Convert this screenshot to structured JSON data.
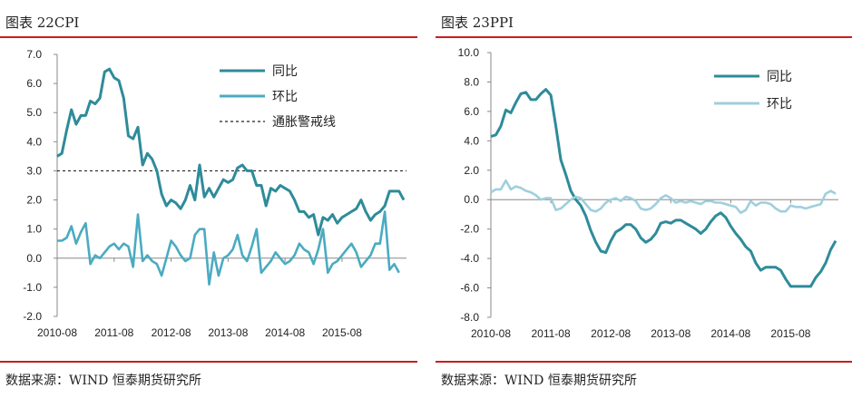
{
  "charts": [
    {
      "title": "图表 22CPI",
      "source": "数据来源：WIND 恒泰期货研究所"
    },
    {
      "title": "图表 23PPI",
      "source": "数据来源：WIND 恒泰期货研究所"
    }
  ],
  "chart_data": [
    {
      "type": "line",
      "x_start": "2010-08",
      "x_ticks": [
        "2010-08",
        "2011-08",
        "2012-08",
        "2013-08",
        "2014-08",
        "2015-08"
      ],
      "ylim": [
        -2.0,
        7.0
      ],
      "y_ticks": [
        "7.0",
        "6.0",
        "5.0",
        "4.0",
        "3.0",
        "2.0",
        "1.0",
        "0.0",
        "-1.0",
        "-2.0"
      ],
      "legend_position": "top-right",
      "reference_line": {
        "name": "通胀警戒线",
        "value": 3.0,
        "style": "dashed"
      },
      "series": [
        {
          "name": "同比",
          "color": "#2e8b9a",
          "values": [
            3.5,
            3.6,
            4.4,
            5.1,
            4.6,
            4.9,
            4.9,
            5.4,
            5.3,
            5.5,
            6.4,
            6.5,
            6.2,
            6.1,
            5.5,
            4.2,
            4.1,
            4.5,
            3.2,
            3.6,
            3.4,
            3.0,
            2.2,
            1.8,
            2.0,
            1.9,
            1.7,
            2.0,
            2.5,
            2.0,
            3.2,
            2.1,
            2.4,
            2.1,
            2.4,
            2.7,
            2.6,
            2.7,
            3.1,
            3.2,
            3.0,
            3.0,
            2.5,
            2.5,
            1.8,
            2.4,
            2.3,
            2.5,
            2.4,
            2.3,
            2.0,
            1.6,
            1.6,
            1.4,
            1.5,
            0.8,
            1.4,
            1.3,
            1.5,
            1.2,
            1.4,
            1.5,
            1.6,
            1.7,
            2.0,
            1.6,
            1.3,
            1.5,
            1.6,
            1.8,
            2.3,
            2.3,
            2.3,
            2.0
          ]
        },
        {
          "name": "环比",
          "color": "#4aabc1",
          "values": [
            0.6,
            0.6,
            0.7,
            1.1,
            0.5,
            0.9,
            1.2,
            -0.2,
            0.1,
            0.0,
            0.2,
            0.4,
            0.5,
            0.3,
            0.5,
            0.4,
            -0.3,
            1.5,
            -0.1,
            0.1,
            -0.1,
            -0.2,
            -0.6,
            0.0,
            0.6,
            0.4,
            0.1,
            -0.1,
            0.0,
            0.8,
            1.0,
            1.0,
            -0.9,
            0.2,
            -0.6,
            0.0,
            0.1,
            0.3,
            0.8,
            0.1,
            -0.1,
            0.4,
            1.0,
            -0.5,
            -0.3,
            -0.1,
            0.2,
            0.0,
            -0.2,
            -0.1,
            0.1,
            0.5,
            0.3,
            0.2,
            -0.2,
            0.3,
            1.0,
            -0.5,
            -0.2,
            -0.1,
            0.1,
            0.3,
            0.5,
            0.2,
            -0.3,
            -0.1,
            0.1,
            0.5,
            0.5,
            1.6,
            -0.4,
            -0.2,
            -0.5
          ]
        }
      ]
    },
    {
      "type": "line",
      "x_start": "2010-08",
      "x_ticks": [
        "2010-08",
        "2011-08",
        "2012-08",
        "2013-08",
        "2014-08",
        "2015-08"
      ],
      "ylim": [
        -8.0,
        10.0
      ],
      "y_ticks": [
        "10.0",
        "8.0",
        "6.0",
        "4.0",
        "2.0",
        "0.0",
        "-2.0",
        "-4.0",
        "-6.0",
        "-8.0"
      ],
      "legend_position": "top-right",
      "series": [
        {
          "name": "同比",
          "color": "#2e8b9a",
          "values": [
            4.3,
            4.4,
            5.0,
            6.1,
            5.9,
            6.6,
            7.2,
            7.3,
            6.8,
            6.8,
            7.2,
            7.5,
            7.1,
            5.0,
            2.7,
            1.7,
            0.6,
            0.0,
            -0.4,
            -1.1,
            -2.1,
            -2.9,
            -3.5,
            -3.6,
            -2.8,
            -2.2,
            -2.0,
            -1.7,
            -1.7,
            -2.0,
            -2.6,
            -2.9,
            -2.7,
            -2.3,
            -1.6,
            -1.5,
            -1.6,
            -1.4,
            -1.4,
            -1.6,
            -1.8,
            -2.0,
            -2.3,
            -2.0,
            -1.5,
            -1.1,
            -0.9,
            -1.2,
            -1.8,
            -2.3,
            -2.7,
            -3.2,
            -3.5,
            -4.3,
            -4.8,
            -4.6,
            -4.6,
            -4.6,
            -4.8,
            -5.4,
            -5.9,
            -5.9,
            -5.9,
            -5.9,
            -5.9,
            -5.3,
            -4.9,
            -4.3,
            -3.4,
            -2.8
          ]
        },
        {
          "name": "环比",
          "color": "#9fcfdc",
          "values": [
            0.5,
            0.7,
            0.7,
            1.3,
            0.7,
            0.9,
            0.8,
            0.6,
            0.5,
            0.3,
            0.0,
            0.1,
            0.1,
            -0.7,
            -0.6,
            -0.3,
            0.0,
            0.2,
            0.1,
            -0.3,
            -0.7,
            -0.8,
            -0.6,
            -0.2,
            0.0,
            0.1,
            -0.1,
            0.2,
            0.1,
            -0.1,
            -0.6,
            -0.7,
            -0.6,
            -0.3,
            0.1,
            0.3,
            0.1,
            -0.2,
            -0.1,
            -0.2,
            -0.1,
            -0.2,
            -0.3,
            -0.1,
            -0.1,
            -0.2,
            -0.2,
            -0.3,
            -0.4,
            -0.5,
            -0.9,
            -0.7,
            -0.1,
            -0.4,
            -0.2,
            -0.2,
            -0.3,
            -0.6,
            -0.8,
            -0.8,
            -0.4,
            -0.5,
            -0.5,
            -0.6,
            -0.5,
            -0.4,
            -0.3,
            0.4,
            0.6,
            0.4
          ]
        }
      ]
    }
  ]
}
